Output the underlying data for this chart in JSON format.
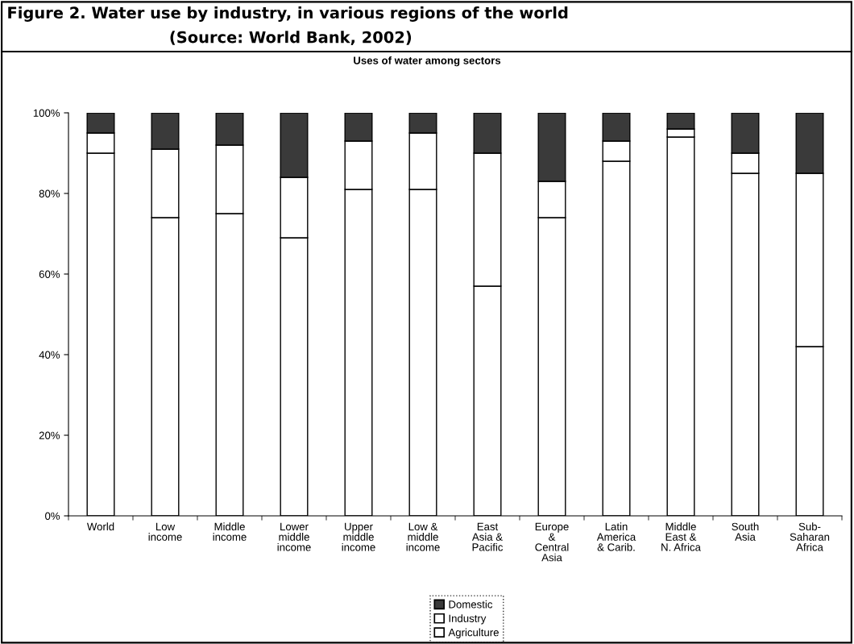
{
  "chart_data": {
    "type": "bar",
    "title": "Figure 2. Water use by industry, in various regions of the world",
    "subtitle": "Uses of water among sectors",
    "annotations": [
      "(Source: World Bank, 2002)"
    ],
    "categories": [
      "World",
      "Low\nincome",
      "Middle\nincome",
      "Lower\nmiddle\nincome",
      "Upper\nmiddle\nincome",
      "Low &\nmiddle\nincome",
      "East\nAsia &\nPacific",
      "Europe\n&\nCentral\nAsia",
      "Latin\nAmerica\n& Carib.",
      "Middle\nEast &\nN. Africa",
      "South\nAsia",
      "Sub-\nSaharan\nAfrica"
    ],
    "stacked": true,
    "series": [
      {
        "name": "Agriculture",
        "color": "#ffffff",
        "values": [
          90,
          74,
          75,
          69,
          81,
          81,
          57,
          74,
          88,
          94,
          85,
          42
        ]
      },
      {
        "name": "Industry",
        "color": "#ffffff",
        "values": [
          5,
          17,
          17,
          15,
          12,
          14,
          33,
          9,
          5,
          2,
          5,
          43
        ]
      },
      {
        "name": "Domestic",
        "color": "#3a3a3a",
        "values": [
          5,
          9,
          8,
          16,
          7,
          5,
          10,
          17,
          7,
          4,
          10,
          15
        ]
      }
    ],
    "ylim": [
      0,
      100
    ],
    "yticks": [
      {
        "value": 0,
        "label": "0%"
      },
      {
        "value": 20,
        "label": "20%"
      },
      {
        "value": 40,
        "label": "40%"
      },
      {
        "value": 60,
        "label": "60%"
      },
      {
        "value": 80,
        "label": "80%"
      },
      {
        "value": 100,
        "label": "100%"
      }
    ],
    "grid": false,
    "legend": "bottom"
  }
}
